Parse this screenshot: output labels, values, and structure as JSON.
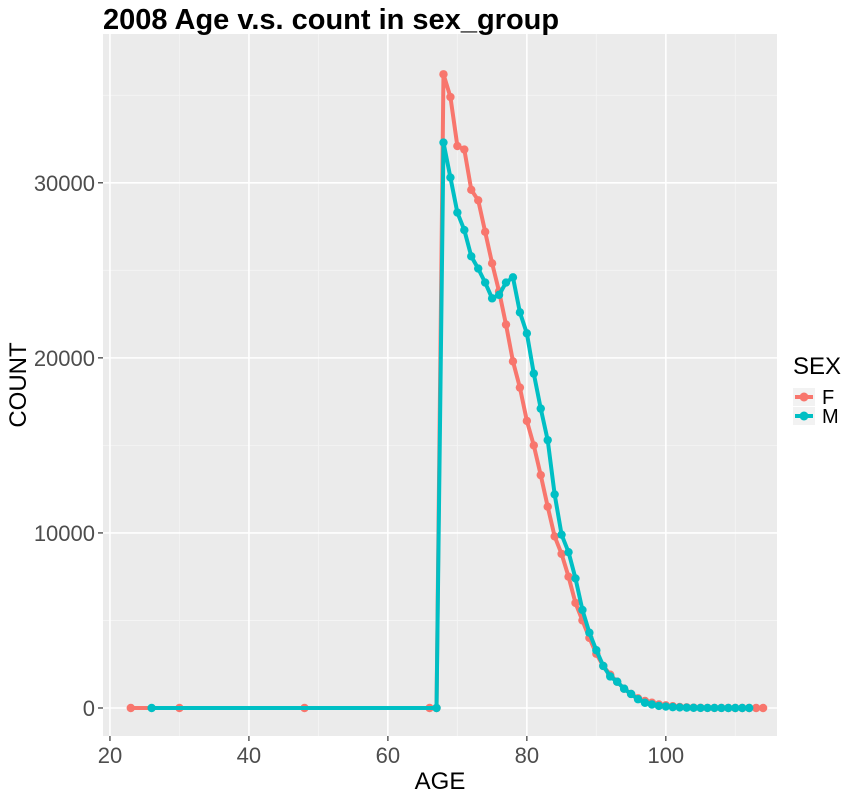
{
  "chart_data": {
    "type": "line",
    "title": "2008 Age v.s. count in sex_group",
    "xlabel": "AGE",
    "ylabel": "COUNT",
    "xlim": [
      19,
      116
    ],
    "ylim": [
      -1600,
      38500
    ],
    "x_ticks": [
      20,
      40,
      60,
      80,
      100
    ],
    "y_ticks": [
      0,
      10000,
      20000,
      30000
    ],
    "x_tick_labels": [
      "20",
      "40",
      "60",
      "80",
      "100"
    ],
    "y_tick_labels": [
      "0",
      "10000",
      "20000",
      "30000"
    ],
    "grid": true,
    "legend": {
      "title": "SEX",
      "position": "right"
    },
    "series": [
      {
        "name": "F",
        "color": "#F8766D",
        "x": [
          23,
          30,
          48,
          66,
          67,
          68,
          69,
          70,
          71,
          72,
          73,
          74,
          75,
          76,
          77,
          78,
          79,
          80,
          81,
          82,
          83,
          84,
          85,
          86,
          87,
          88,
          89,
          90,
          91,
          92,
          93,
          94,
          95,
          96,
          97,
          98,
          99,
          100,
          101,
          102,
          103,
          104,
          105,
          106,
          107,
          108,
          109,
          110,
          111,
          112,
          113,
          114
        ],
        "y": [
          0,
          0,
          0,
          0,
          0,
          36200,
          34900,
          32100,
          31900,
          29600,
          29000,
          27200,
          25400,
          23800,
          21900,
          19800,
          18300,
          16400,
          15000,
          13300,
          11500,
          9800,
          8800,
          7500,
          6000,
          5000,
          4000,
          3100,
          2400,
          1900,
          1500,
          1100,
          800,
          550,
          400,
          300,
          200,
          150,
          100,
          60,
          40,
          20,
          10,
          5,
          3,
          2,
          1,
          0,
          0,
          0,
          0,
          0
        ]
      },
      {
        "name": "M",
        "color": "#00BFC4",
        "x": [
          26,
          67,
          68,
          69,
          70,
          71,
          72,
          73,
          74,
          75,
          76,
          77,
          78,
          79,
          80,
          81,
          82,
          83,
          84,
          85,
          86,
          87,
          88,
          89,
          90,
          91,
          92,
          93,
          94,
          95,
          96,
          97,
          98,
          99,
          100,
          101,
          102,
          103,
          104,
          105,
          106,
          107,
          108,
          109,
          110,
          111,
          112
        ],
        "y": [
          0,
          0,
          32300,
          30300,
          28300,
          27300,
          25800,
          25100,
          24300,
          23400,
          23600,
          24300,
          24600,
          22600,
          21400,
          19100,
          17100,
          15300,
          12200,
          9900,
          8900,
          7400,
          5600,
          4300,
          3300,
          2400,
          1800,
          1500,
          1100,
          800,
          500,
          300,
          200,
          120,
          80,
          50,
          30,
          20,
          10,
          5,
          3,
          2,
          1,
          0,
          0,
          0,
          0
        ]
      }
    ]
  }
}
